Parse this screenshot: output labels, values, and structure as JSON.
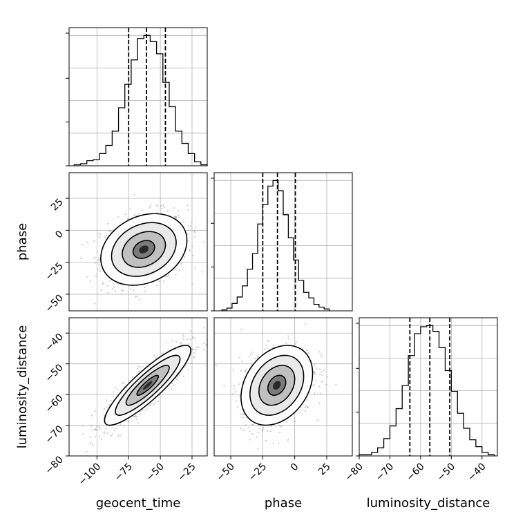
{
  "chart_data": {
    "type": "corner",
    "parameters": [
      "geocent_time",
      "phase",
      "luminosity_distance"
    ],
    "axis_labels": {
      "geocent_time": "geocent_time",
      "phase": "phase",
      "luminosity_distance": "luminosity_distance"
    },
    "ranges": {
      "geocent_time": [
        -122,
        -13
      ],
      "phase": [
        -63,
        45
      ],
      "luminosity_distance": [
        -80,
        -35
      ]
    },
    "ticks": {
      "geocent_time": [
        -100,
        -75,
        -50,
        -25
      ],
      "phase": [
        -50,
        -25,
        0,
        25
      ],
      "luminosity_distance": [
        -80,
        -70,
        -60,
        -50,
        -40
      ]
    },
    "tick_labels": {
      "geocent_time": [
        "−100",
        "−75",
        "−50",
        "−25"
      ],
      "phase": [
        "−50",
        "−25",
        "0",
        "25"
      ],
      "luminosity_distance": [
        "−80",
        "−70",
        "−60",
        "−50",
        "−40"
      ]
    },
    "quantiles": {
      "geocent_time": [
        -75,
        -61,
        -46
      ],
      "phase": [
        -25,
        -13.5,
        0.5
      ],
      "luminosity_distance": [
        -63.5,
        -57,
        -50.5
      ]
    },
    "histograms": {
      "geocent_time": {
        "edges": [
          -118,
          -113,
          -108,
          -103,
          -98,
          -93,
          -88,
          -83,
          -78,
          -73,
          -68,
          -63,
          -58,
          -53,
          -48,
          -43,
          -38,
          -33,
          -28,
          -23,
          -18,
          -13
        ],
        "counts": [
          1,
          2,
          5,
          6,
          12,
          20,
          34,
          57,
          80,
          104,
          125,
          128,
          122,
          110,
          82,
          58,
          34,
          22,
          12,
          4,
          1
        ]
      },
      "phase": {
        "edges": [
          -57,
          -53,
          -49,
          -45,
          -41,
          -37,
          -33,
          -29,
          -25,
          -21,
          -17,
          -13,
          -9,
          -5,
          -1,
          3,
          7,
          11,
          15,
          19,
          23,
          27
        ],
        "counts": [
          1,
          3,
          8,
          15,
          27,
          45,
          62,
          94,
          115,
          135,
          141,
          130,
          104,
          79,
          55,
          33,
          20,
          14,
          7,
          4,
          2
        ]
      },
      "luminosity_distance": {
        "edges": [
          -80,
          -78,
          -76,
          -74,
          -72,
          -70,
          -68,
          -66,
          -64,
          -62,
          -60,
          -58,
          -56,
          -54,
          -52,
          -50,
          -48,
          -46,
          -44,
          -42,
          -40,
          -38,
          -36
        ],
        "counts": [
          1,
          1,
          3,
          7,
          15,
          26,
          41,
          61,
          87,
          106,
          112,
          113,
          108,
          94,
          74,
          56,
          37,
          24,
          14,
          8,
          3,
          1
        ]
      }
    },
    "pairs": [
      {
        "x": "geocent_time",
        "y": "phase",
        "center": [
          -63,
          -15
        ],
        "sigma": [
          17,
          14
        ],
        "correlation": 0.25,
        "contour_levels_sigma": [
          0.5,
          1.0,
          1.5,
          2.0
        ]
      },
      {
        "x": "geocent_time",
        "y": "luminosity_distance",
        "center": [
          -60,
          -57
        ],
        "sigma": [
          17,
          6.5
        ],
        "correlation": 0.88,
        "contour_levels_sigma": [
          0.5,
          1.0,
          1.5,
          2.0
        ]
      },
      {
        "x": "phase",
        "y": "luminosity_distance",
        "center": [
          -14,
          -57
        ],
        "sigma": [
          14,
          6.5
        ],
        "correlation": 0.3,
        "contour_levels_sigma": [
          0.5,
          1.0,
          1.5,
          2.0
        ]
      }
    ],
    "grid": true
  }
}
